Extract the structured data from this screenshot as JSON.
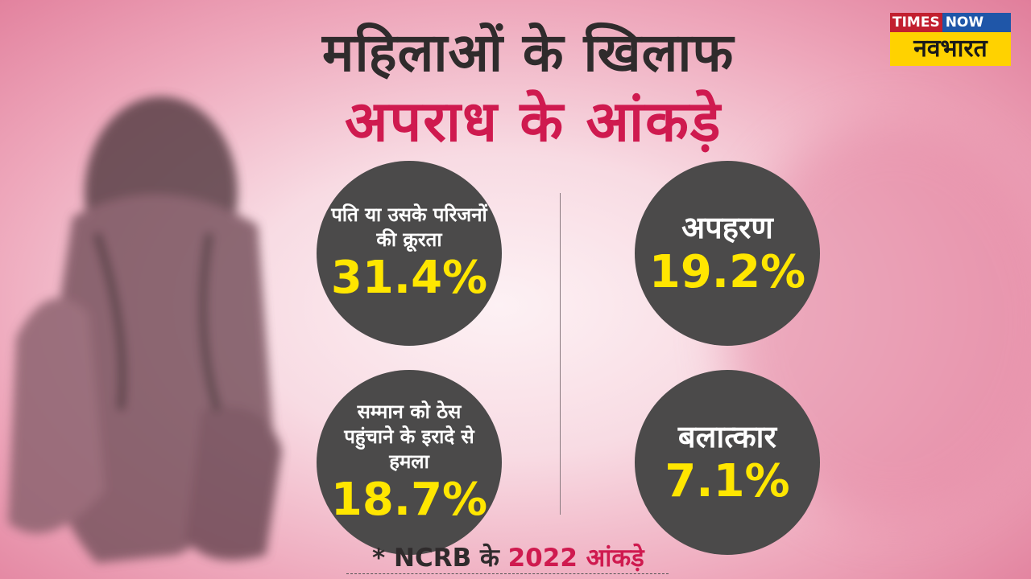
{
  "title": {
    "line1": "महिलाओं के खिलाफ",
    "line2": "अपराध के आंकड़े"
  },
  "logo": {
    "top_left": "TIMES",
    "top_right": "NOW",
    "bottom": "नवभारत"
  },
  "stats": [
    {
      "label": "पति या उसके परिजनों की क्रूरता",
      "value": "31.4%"
    },
    {
      "label": "अपहरण",
      "value": "19.2%"
    },
    {
      "label": "सम्मान को ठेस पहुंचाने के इरादे से हमला",
      "value": "18.7%"
    },
    {
      "label": "बलात्कार",
      "value": "7.1%"
    }
  ],
  "footnote": {
    "prefix": "* NCRB के",
    "highlight": "2022 आंकड़े"
  },
  "colors": {
    "accent": "#cf1a4f",
    "circle": "#4b4a4a",
    "value": "#ffe600"
  }
}
